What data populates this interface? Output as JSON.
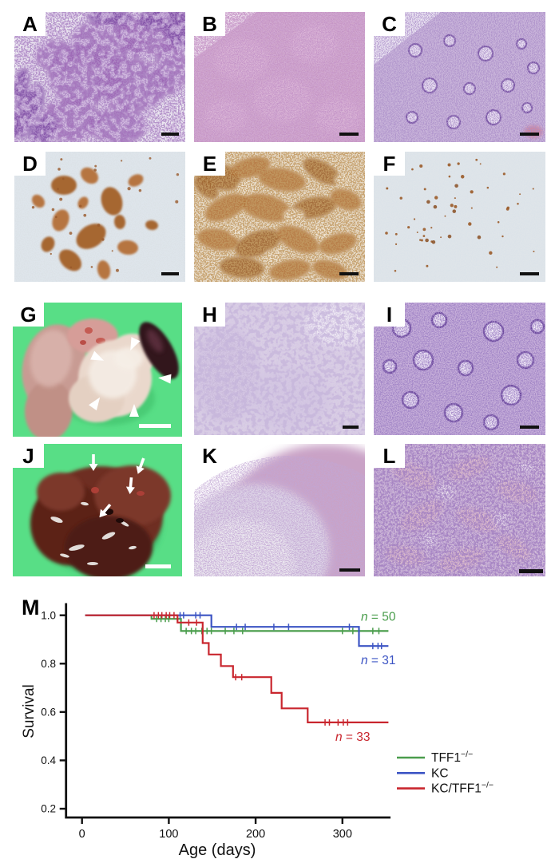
{
  "figure": {
    "panel_m_label": "M",
    "panels": [
      {
        "label": "A",
        "kind": "histology-HE-low-mag",
        "scale_bar": true
      },
      {
        "label": "B",
        "kind": "histology-HE",
        "scale_bar": true
      },
      {
        "label": "C",
        "kind": "histology-HE",
        "scale_bar": true
      },
      {
        "label": "D",
        "kind": "IHC-brown-clusters",
        "scale_bar": true
      },
      {
        "label": "E",
        "kind": "IHC-brown-diffuse",
        "scale_bar": true
      },
      {
        "label": "F",
        "kind": "IHC-brown-sparse",
        "scale_bar": true
      },
      {
        "label": "G",
        "kind": "gross-specimen-pancreas",
        "scale_bar": true,
        "marker": "white-arrowheads"
      },
      {
        "label": "H",
        "kind": "histology-HE-pale",
        "scale_bar": true
      },
      {
        "label": "I",
        "kind": "histology-HE-glands",
        "scale_bar": true
      },
      {
        "label": "J",
        "kind": "gross-specimen-liver",
        "scale_bar": true,
        "marker": "white-arrows"
      },
      {
        "label": "K",
        "kind": "histology-HE-nodule",
        "scale_bar": true
      },
      {
        "label": "L",
        "kind": "histology-HE-dense",
        "scale_bar": true
      }
    ]
  },
  "colors": {
    "gross_background_green": "#58de86",
    "axis_black": "#111111",
    "tff1_green": "#4a9d4c",
    "kc_blue": "#3d55c4",
    "kctff1_red": "#c9262e"
  },
  "chart_data": {
    "type": "line",
    "subtype": "kaplan-meier-step",
    "title": "",
    "xlabel": "Age (days)",
    "ylabel": "Survival",
    "xticks": [
      0,
      100,
      200,
      300
    ],
    "yticks": [
      0.2,
      0.4,
      0.6,
      0.8,
      1.0
    ],
    "xlim": [
      0,
      353
    ],
    "ylim": [
      0.15,
      1.02
    ],
    "grid": false,
    "legend_position": "right-lower",
    "series": [
      {
        "name": "TFF1−/−",
        "name_base": "TFF1",
        "name_sup": "−/−",
        "color": "#4a9d4c",
        "n": 50,
        "n_label": "n = 50",
        "steps": [
          [
            0,
            1.0
          ],
          [
            80,
            1.0
          ],
          [
            80,
            0.985
          ],
          [
            114,
            0.985
          ],
          [
            114,
            0.935
          ],
          [
            353,
            0.935
          ]
        ],
        "censors": [
          [
            86,
            0.985
          ],
          [
            91,
            0.985
          ],
          [
            96,
            0.985
          ],
          [
            100,
            0.985
          ],
          [
            120,
            0.935
          ],
          [
            126,
            0.935
          ],
          [
            131,
            0.935
          ],
          [
            138,
            0.935
          ],
          [
            144,
            0.935
          ],
          [
            149,
            0.935
          ],
          [
            165,
            0.935
          ],
          [
            175,
            0.935
          ],
          [
            185,
            0.935
          ],
          [
            300,
            0.935
          ],
          [
            312,
            0.935
          ],
          [
            335,
            0.935
          ],
          [
            342,
            0.935
          ]
        ]
      },
      {
        "name": "KC",
        "name_base": "KC",
        "name_sup": "",
        "color": "#3d55c4",
        "n": 31,
        "n_label": "n = 31",
        "steps": [
          [
            0,
            1.0
          ],
          [
            149,
            1.0
          ],
          [
            149,
            0.952
          ],
          [
            319,
            0.952
          ],
          [
            319,
            0.873
          ],
          [
            353,
            0.873
          ]
        ],
        "censors": [
          [
            113,
            1.0
          ],
          [
            117,
            1.0
          ],
          [
            131,
            1.0
          ],
          [
            136,
            1.0
          ],
          [
            178,
            0.952
          ],
          [
            188,
            0.952
          ],
          [
            221,
            0.952
          ],
          [
            238,
            0.952
          ],
          [
            308,
            0.952
          ],
          [
            335,
            0.873
          ],
          [
            341,
            0.873
          ],
          [
            345,
            0.873
          ]
        ]
      },
      {
        "name": "KC/TFF1−/−",
        "name_base": "KC/TFF1",
        "name_sup": "−/−",
        "color": "#c9262e",
        "n": 33,
        "n_label": "n = 33",
        "steps": [
          [
            0,
            1.0
          ],
          [
            110,
            1.0
          ],
          [
            110,
            0.97
          ],
          [
            139,
            0.97
          ],
          [
            139,
            0.885
          ],
          [
            146,
            0.885
          ],
          [
            146,
            0.838
          ],
          [
            160,
            0.838
          ],
          [
            160,
            0.79
          ],
          [
            174,
            0.79
          ],
          [
            174,
            0.744
          ],
          [
            218,
            0.744
          ],
          [
            218,
            0.679
          ],
          [
            230,
            0.679
          ],
          [
            230,
            0.615
          ],
          [
            260,
            0.615
          ],
          [
            260,
            0.557
          ],
          [
            353,
            0.557
          ]
        ],
        "censors": [
          [
            83,
            1.0
          ],
          [
            88,
            1.0
          ],
          [
            92,
            1.0
          ],
          [
            97,
            1.0
          ],
          [
            101,
            1.0
          ],
          [
            106,
            1.0
          ],
          [
            123,
            0.97
          ],
          [
            132,
            0.97
          ],
          [
            177,
            0.744
          ],
          [
            184,
            0.744
          ],
          [
            280,
            0.557
          ],
          [
            285,
            0.557
          ],
          [
            295,
            0.557
          ],
          [
            301,
            0.557
          ],
          [
            306,
            0.557
          ]
        ]
      }
    ]
  }
}
